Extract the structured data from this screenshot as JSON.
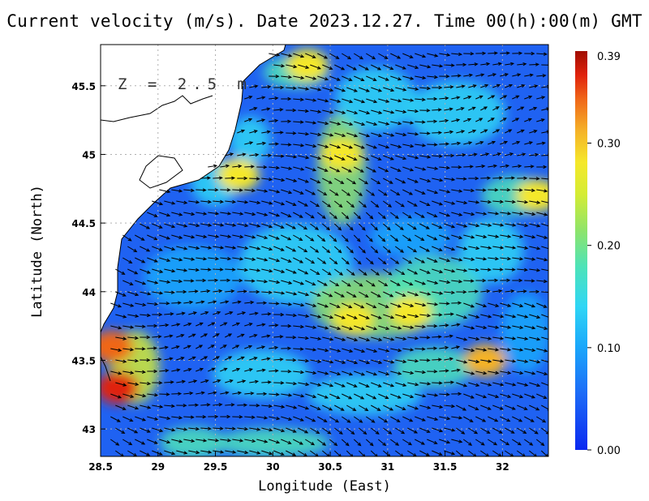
{
  "title": "Current velocity (m/s). Date 2023.12.27. Time 00(h):00(m) GMT",
  "depth_label": "Z = 2.5 m",
  "axes": {
    "x_label": "Longitude (East)",
    "y_label": "Latitude (North)",
    "x_ticks": [
      "28.5",
      "29",
      "29.5",
      "30",
      "30.5",
      "31",
      "31.5",
      "32"
    ],
    "y_ticks": [
      "43",
      "43.5",
      "44",
      "44.5",
      "45",
      "45.5"
    ]
  },
  "colorbar": {
    "max_label": "0.39",
    "tick_labels": [
      "0.00",
      "0.10",
      "0.20",
      "0.30"
    ],
    "tick_values": [
      0.0,
      0.1,
      0.2,
      0.3
    ],
    "max_value": 0.39
  },
  "colors": {
    "land": "#ffffff",
    "low": "#0a3cf0",
    "mid": "#2fd6f5",
    "high_mid": "#f5f02a",
    "high": "#b01000",
    "arrow": "#000000",
    "grid": "#b0b0b0"
  },
  "chart_data": {
    "type": "heatmap",
    "title": "Current velocity (m/s). Date 2023.12.27. Time 00(h):00(m) GMT",
    "xlabel": "Longitude (East)",
    "ylabel": "Latitude (North)",
    "xlim": [
      28.5,
      32.4
    ],
    "ylim": [
      42.8,
      45.8
    ],
    "variable": "current speed (m/s) with velocity vectors",
    "value_range": [
      0.0,
      0.39
    ],
    "grid": true,
    "legend": "colorbar right",
    "high_speed_features": [
      {
        "lon": 28.65,
        "lat": 43.3,
        "speed": 0.35
      },
      {
        "lon": 28.6,
        "lat": 43.6,
        "speed": 0.34
      },
      {
        "lon": 29.7,
        "lat": 44.85,
        "speed": 0.28
      },
      {
        "lon": 30.6,
        "lat": 45.0,
        "speed": 0.28
      },
      {
        "lon": 30.7,
        "lat": 43.8,
        "speed": 0.27
      },
      {
        "lon": 31.2,
        "lat": 43.85,
        "speed": 0.28
      },
      {
        "lon": 31.85,
        "lat": 43.5,
        "speed": 0.29
      },
      {
        "lon": 30.3,
        "lat": 45.65,
        "speed": 0.26
      },
      {
        "lon": 32.3,
        "lat": 44.7,
        "speed": 0.26
      }
    ]
  }
}
